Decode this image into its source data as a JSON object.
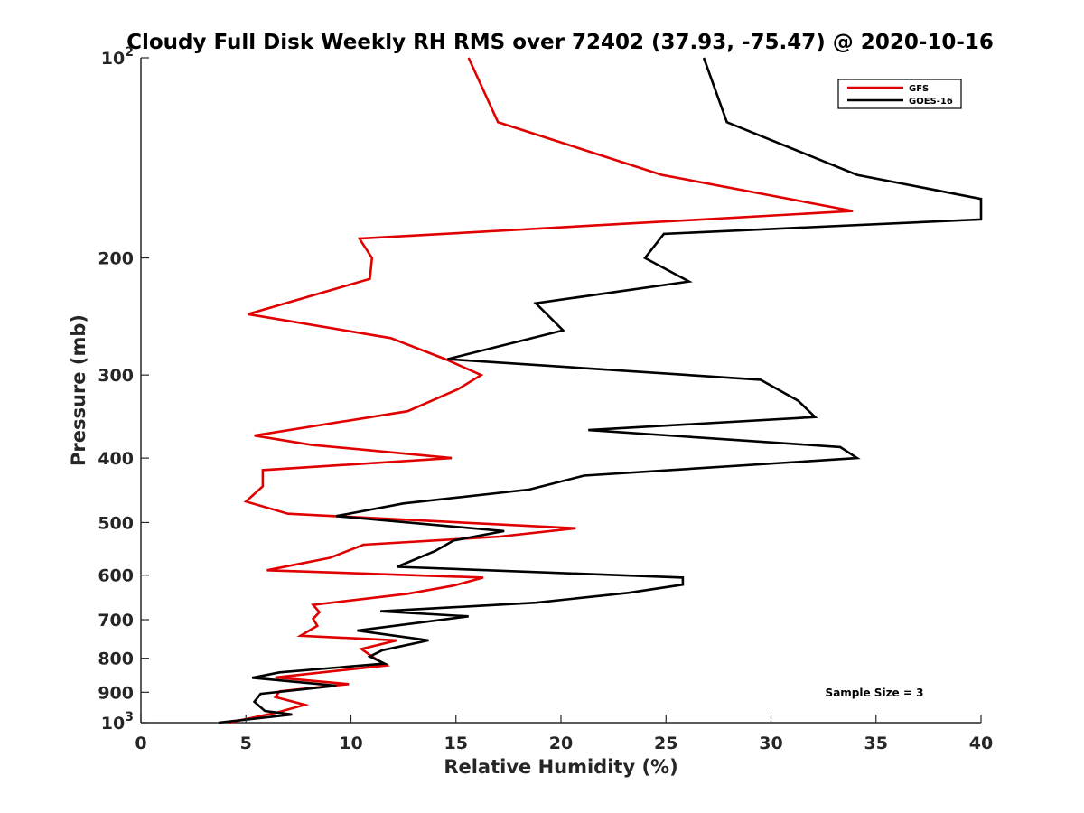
{
  "chart_data": {
    "type": "line",
    "title": "Cloudy Full Disk Weekly RH RMS over 72402 (37.93, -75.47) @ 2020-10-16",
    "xlabel": "Relative Humidity (%)",
    "ylabel": "Pressure (mb)",
    "xlim": [
      0,
      40
    ],
    "ylim": [
      100,
      1000
    ],
    "y_scale": "log",
    "y_reversed": true,
    "grid": false,
    "legend_position": "top-right",
    "x_ticks": [
      "0",
      "5",
      "10",
      "15",
      "20",
      "25",
      "30",
      "35",
      "40"
    ],
    "x_tick_values": [
      0,
      5,
      10,
      15,
      20,
      25,
      30,
      35,
      40
    ],
    "y_tick_values": [
      100,
      200,
      300,
      400,
      500,
      600,
      700,
      800,
      900,
      1000
    ],
    "y_ticks": [
      {
        "base": "10",
        "exp": "2"
      },
      {
        "text": "200"
      },
      {
        "text": "300"
      },
      {
        "text": "400"
      },
      {
        "text": "500"
      },
      {
        "text": "600"
      },
      {
        "text": "700"
      },
      {
        "text": "800"
      },
      {
        "text": "900"
      },
      {
        "base": "10",
        "exp": "3"
      }
    ],
    "annotation": "Sample Size = 3",
    "series": [
      {
        "name": "GFS",
        "color": "#e00000",
        "points": [
          [
            15.6,
            100
          ],
          [
            17.0,
            125
          ],
          [
            24.8,
            150
          ],
          [
            33.9,
            170
          ],
          [
            10.4,
            187
          ],
          [
            11.0,
            200
          ],
          [
            10.9,
            215
          ],
          [
            5.1,
            243
          ],
          [
            11.9,
            264
          ],
          [
            14.5,
            284
          ],
          [
            16.2,
            300
          ],
          [
            15.1,
            315
          ],
          [
            12.7,
            340
          ],
          [
            5.4,
            370
          ],
          [
            8.1,
            382
          ],
          [
            14.8,
            400
          ],
          [
            5.8,
            417
          ],
          [
            5.8,
            441
          ],
          [
            5.0,
            465
          ],
          [
            7.0,
            485
          ],
          [
            20.7,
            510
          ],
          [
            17.1,
            525
          ],
          [
            10.6,
            540
          ],
          [
            9.0,
            565
          ],
          [
            6.0,
            590
          ],
          [
            16.3,
            605
          ],
          [
            14.9,
            622
          ],
          [
            12.7,
            640
          ],
          [
            8.2,
            665
          ],
          [
            8.5,
            682
          ],
          [
            8.2,
            698
          ],
          [
            8.4,
            715
          ],
          [
            7.6,
            740
          ],
          [
            12.2,
            752
          ],
          [
            10.5,
            775
          ],
          [
            11.0,
            795
          ],
          [
            11.7,
            820
          ],
          [
            6.4,
            855
          ],
          [
            9.9,
            875
          ],
          [
            6.6,
            897
          ],
          [
            6.4,
            915
          ],
          [
            7.8,
            940
          ],
          [
            6.5,
            965
          ],
          [
            4.2,
            1000
          ]
        ]
      },
      {
        "name": "GOES-16",
        "color": "#000000",
        "points": [
          [
            26.8,
            100
          ],
          [
            27.9,
            125
          ],
          [
            34.1,
            150
          ],
          [
            40.0,
            163
          ],
          [
            40.0,
            175
          ],
          [
            24.9,
            184
          ],
          [
            24.0,
            200
          ],
          [
            26.1,
            217
          ],
          [
            18.8,
            234
          ],
          [
            20.1,
            257
          ],
          [
            14.6,
            284
          ],
          [
            29.5,
            305
          ],
          [
            31.3,
            328
          ],
          [
            32.1,
            347
          ],
          [
            21.3,
            363
          ],
          [
            33.3,
            385
          ],
          [
            34.1,
            400
          ],
          [
            21.1,
            425
          ],
          [
            18.5,
            446
          ],
          [
            12.5,
            468
          ],
          [
            9.3,
            489
          ],
          [
            17.3,
            515
          ],
          [
            14.9,
            532
          ],
          [
            14.0,
            552
          ],
          [
            12.2,
            583
          ],
          [
            25.8,
            605
          ],
          [
            25.8,
            620
          ],
          [
            23.2,
            638
          ],
          [
            18.8,
            660
          ],
          [
            11.4,
            680
          ],
          [
            15.6,
            692
          ],
          [
            10.3,
            727
          ],
          [
            13.7,
            752
          ],
          [
            11.5,
            778
          ],
          [
            10.9,
            795
          ],
          [
            11.6,
            815
          ],
          [
            6.6,
            840
          ],
          [
            5.3,
            856
          ],
          [
            9.3,
            880
          ],
          [
            5.7,
            905
          ],
          [
            5.4,
            930
          ],
          [
            5.9,
            960
          ],
          [
            7.2,
            972
          ],
          [
            3.7,
            1000
          ]
        ]
      }
    ]
  }
}
